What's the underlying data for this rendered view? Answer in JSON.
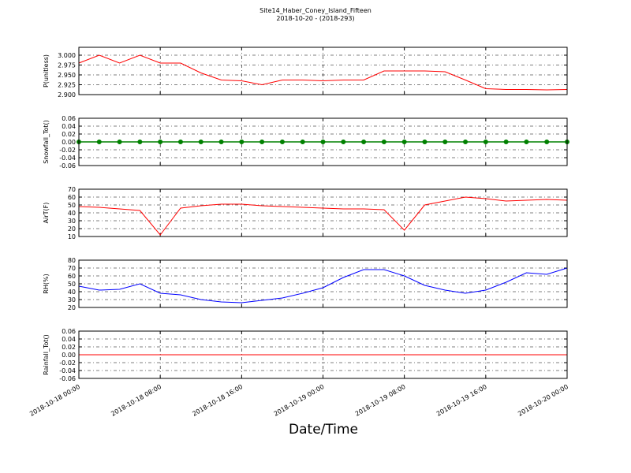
{
  "title": "Site14_Haber_Coney_Island_Fifteen",
  "subtitle": "2018-10-20 - (2018-293)",
  "xlabel": "Date/Time",
  "xlim": [
    "2018-10-18 00:00",
    "2018-10-20 00:00"
  ],
  "xticks": [
    "2018-10-18 00:00",
    "2018-10-18 08:00",
    "2018-10-18 16:00",
    "2018-10-19 00:00",
    "2018-10-19 08:00",
    "2018-10-19 16:00",
    "2018-10-20 00:00"
  ],
  "x": [
    "2018-10-18 00:00",
    "2018-10-18 02:00",
    "2018-10-18 04:00",
    "2018-10-18 06:00",
    "2018-10-18 08:00",
    "2018-10-18 10:00",
    "2018-10-18 12:00",
    "2018-10-18 14:00",
    "2018-10-18 16:00",
    "2018-10-18 18:00",
    "2018-10-18 20:00",
    "2018-10-18 22:00",
    "2018-10-19 00:00",
    "2018-10-19 02:00",
    "2018-10-19 04:00",
    "2018-10-19 06:00",
    "2018-10-19 08:00",
    "2018-10-19 10:00",
    "2018-10-19 12:00",
    "2018-10-19 14:00",
    "2018-10-19 16:00",
    "2018-10-19 18:00",
    "2018-10-19 20:00",
    "2018-10-19 22:00",
    "2018-10-20 00:00"
  ],
  "chart_data": [
    {
      "type": "line",
      "ylabel": "P(unitless)",
      "color": "#ff0000",
      "grid": true,
      "ylim": [
        2.9,
        3.02
      ],
      "yticks": [
        {
          "value": 2.9,
          "label": "2.900"
        },
        {
          "value": 2.925,
          "label": "2.925"
        },
        {
          "value": 2.95,
          "label": "2.950"
        },
        {
          "value": 2.975,
          "label": "2.975"
        },
        {
          "value": 3.0,
          "label": "3.000"
        }
      ],
      "values": [
        2.98,
        3.0,
        2.98,
        3.0,
        2.98,
        2.98,
        2.955,
        2.937,
        2.935,
        2.925,
        2.937,
        2.937,
        2.935,
        2.937,
        2.937,
        2.96,
        2.96,
        2.96,
        2.958,
        2.937,
        2.915,
        2.913,
        2.913,
        2.912,
        2.913
      ]
    },
    {
      "type": "line",
      "ylabel": "Snowfall_Tot()",
      "color": "#008000",
      "marker": true,
      "grid": true,
      "ylim": [
        -0.06,
        0.06
      ],
      "yticks": [
        -0.06,
        -0.04,
        -0.02,
        {
          "value": 0,
          "label": "0.00"
        },
        0.02,
        0.04,
        0.06
      ],
      "values": [
        0,
        0,
        0,
        0,
        0,
        0,
        0,
        0,
        0,
        0,
        0,
        0,
        0,
        0,
        0,
        0,
        0,
        0,
        0,
        0,
        0,
        0,
        0,
        0,
        0
      ]
    },
    {
      "type": "line",
      "ylabel": "AirT(F)",
      "color": "#ff0000",
      "grid": true,
      "ylim": [
        10,
        70
      ],
      "yticks": [
        10,
        20,
        30,
        40,
        50,
        60,
        70
      ],
      "values": [
        48,
        47,
        45,
        43,
        12,
        46,
        49,
        51,
        51,
        49,
        48,
        47,
        46,
        45,
        45,
        44,
        18,
        50,
        55,
        60,
        58,
        55,
        56,
        57,
        56
      ]
    },
    {
      "type": "line",
      "ylabel": "RH(%)",
      "color": "#0000ff",
      "grid": true,
      "ylim": [
        20,
        80
      ],
      "yticks": [
        20,
        30,
        40,
        50,
        60,
        70,
        80
      ],
      "values": [
        47,
        42,
        43,
        50,
        38,
        36,
        30,
        27,
        26,
        29,
        32,
        38,
        45,
        58,
        68,
        68,
        60,
        48,
        42,
        38,
        42,
        52,
        64,
        62,
        70
      ]
    },
    {
      "type": "line",
      "ylabel": "Rainfall_Tot()",
      "color": "#ff0000",
      "grid": true,
      "ylim": [
        -0.06,
        0.06
      ],
      "yticks": [
        -0.06,
        -0.04,
        -0.02,
        {
          "value": 0,
          "label": "0.00"
        },
        0.02,
        0.04,
        0.06
      ],
      "values": [
        0,
        0,
        0,
        0,
        0,
        0,
        0,
        0,
        0,
        0,
        0,
        0,
        0,
        0,
        0,
        0,
        0,
        0,
        0,
        0,
        0,
        0,
        0,
        0,
        0
      ]
    }
  ]
}
